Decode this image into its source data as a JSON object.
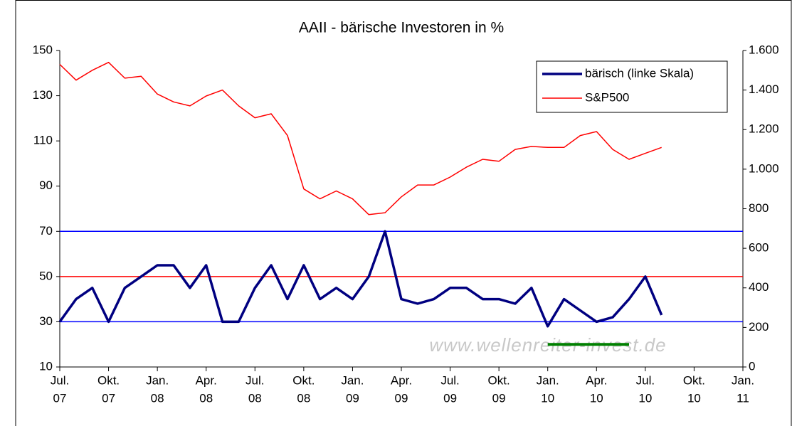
{
  "chart_data": {
    "type": "line",
    "title": "AAII - bärische Investoren in %",
    "x": [
      "2007-07",
      "2007-08",
      "2007-09",
      "2007-10",
      "2007-11",
      "2007-12",
      "2008-01",
      "2008-02",
      "2008-03",
      "2008-04",
      "2008-05",
      "2008-06",
      "2008-07",
      "2008-08",
      "2008-09",
      "2008-10",
      "2008-11",
      "2008-12",
      "2009-01",
      "2009-02",
      "2009-03",
      "2009-04",
      "2009-05",
      "2009-06",
      "2009-07",
      "2009-08",
      "2009-09",
      "2009-10",
      "2009-11",
      "2009-12",
      "2010-01",
      "2010-02",
      "2010-03",
      "2010-04",
      "2010-05",
      "2010-06",
      "2010-07",
      "2010-08"
    ],
    "series": [
      {
        "name": "bärisch (linke Skala)",
        "color": "#000080",
        "values": [
          30,
          40,
          45,
          30,
          45,
          50,
          55,
          55,
          45,
          55,
          30,
          30,
          45,
          55,
          40,
          55,
          40,
          45,
          40,
          50,
          70,
          40,
          38,
          40,
          45,
          45,
          40,
          40,
          38,
          45,
          28,
          40,
          35,
          30,
          32,
          40,
          50,
          33
        ]
      },
      {
        "name": "S&P500",
        "color": "#ff0000",
        "axis": "y2",
        "values": [
          1530,
          1450,
          1500,
          1540,
          1460,
          1470,
          1380,
          1340,
          1320,
          1370,
          1400,
          1320,
          1260,
          1280,
          1170,
          900,
          850,
          890,
          850,
          770,
          780,
          860,
          920,
          920,
          960,
          1010,
          1050,
          1040,
          1100,
          1115,
          1110,
          1110,
          1170,
          1190,
          1100,
          1050,
          1080,
          1110
        ]
      }
    ],
    "xlim": [
      "2007-07",
      "2011-01"
    ],
    "xticks": [
      {
        "value": "2007-07",
        "label": [
          "Jul.",
          "07"
        ]
      },
      {
        "value": "2007-10",
        "label": [
          "Okt.",
          "07"
        ]
      },
      {
        "value": "2008-01",
        "label": [
          "Jan.",
          "08"
        ]
      },
      {
        "value": "2008-04",
        "label": [
          "Apr.",
          "08"
        ]
      },
      {
        "value": "2008-07",
        "label": [
          "Jul.",
          "08"
        ]
      },
      {
        "value": "2008-10",
        "label": [
          "Okt.",
          "08"
        ]
      },
      {
        "value": "2009-01",
        "label": [
          "Jan.",
          "09"
        ]
      },
      {
        "value": "2009-04",
        "label": [
          "Apr.",
          "09"
        ]
      },
      {
        "value": "2009-07",
        "label": [
          "Jul.",
          "09"
        ]
      },
      {
        "value": "2009-10",
        "label": [
          "Okt.",
          "09"
        ]
      },
      {
        "value": "2010-01",
        "label": [
          "Jan.",
          "10"
        ]
      },
      {
        "value": "2010-04",
        "label": [
          "Apr.",
          "10"
        ]
      },
      {
        "value": "2010-07",
        "label": [
          "Jul.",
          "10"
        ]
      },
      {
        "value": "2010-10",
        "label": [
          "Okt.",
          "10"
        ]
      },
      {
        "value": "2011-01",
        "label": [
          "Jan.",
          "11"
        ]
      }
    ],
    "ylim": [
      10,
      150
    ],
    "yticks": [
      10,
      30,
      50,
      70,
      90,
      110,
      130,
      150
    ],
    "y2lim": [
      0,
      1600
    ],
    "y2ticks": [
      0,
      {
        "value": 200,
        "label": "200"
      },
      400,
      600,
      800,
      {
        "value": 1000,
        "label": "1.000"
      },
      {
        "value": 1200,
        "label": "1.200"
      },
      {
        "value": 1400,
        "label": "1.400"
      },
      {
        "value": 1600,
        "label": "1.600"
      }
    ],
    "hlines": [
      {
        "value": 70,
        "color": "#0000ff"
      },
      {
        "value": 50,
        "color": "#ff0000"
      },
      {
        "value": 30,
        "color": "#0000ff"
      }
    ],
    "segment": {
      "x": [
        "2010-01",
        "2010-06"
      ],
      "value": 20,
      "color": "#008000"
    },
    "watermark": "www.wellenreiter-invest.de",
    "legend": "top-right"
  }
}
